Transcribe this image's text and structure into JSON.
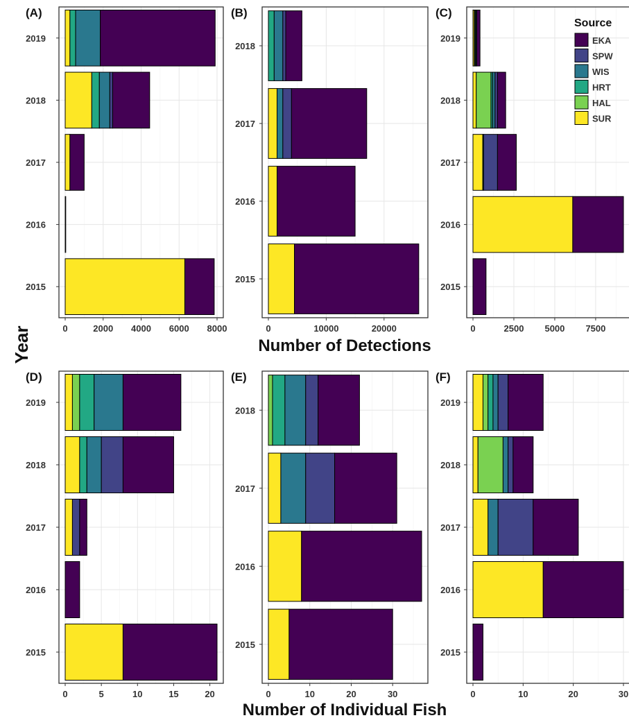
{
  "figure": {
    "y_title": "Year",
    "x_title_top": "Number of Detections",
    "x_title_bottom": "Number of Individual Fish"
  },
  "legend": {
    "title": "Source",
    "placement": "top-right inside panel C",
    "items": [
      {
        "name": "EKA",
        "color": "#440154"
      },
      {
        "name": "SPW",
        "color": "#414487"
      },
      {
        "name": "WIS",
        "color": "#2a788e"
      },
      {
        "name": "HRT",
        "color": "#22a884"
      },
      {
        "name": "HAL",
        "color": "#7ad151"
      },
      {
        "name": "SUR",
        "color": "#fde725"
      }
    ]
  },
  "chart_data": [
    {
      "panel": "(A)",
      "type": "bar",
      "orientation": "horizontal",
      "stacked": true,
      "categories": [
        "2015",
        "2016",
        "2017",
        "2018",
        "2019"
      ],
      "xlim": [
        0,
        8000
      ],
      "xticks": [
        0,
        2000,
        4000,
        6000,
        8000
      ],
      "tick_labels": [
        "0",
        "2000",
        "4000",
        "6000",
        "8000"
      ],
      "grid": true,
      "series": [
        {
          "name": "SUR",
          "values": [
            6300,
            0,
            250,
            1400,
            250
          ]
        },
        {
          "name": "HAL",
          "values": [
            0,
            0,
            0,
            0,
            0
          ]
        },
        {
          "name": "HRT",
          "values": [
            0,
            0,
            0,
            400,
            300
          ]
        },
        {
          "name": "WIS",
          "values": [
            0,
            0,
            0,
            550,
            1300
          ]
        },
        {
          "name": "SPW",
          "values": [
            0,
            0,
            0,
            150,
            0
          ]
        },
        {
          "name": "EKA",
          "values": [
            1550,
            15,
            750,
            1950,
            6050
          ]
        }
      ]
    },
    {
      "panel": "(B)",
      "type": "bar",
      "orientation": "horizontal",
      "stacked": true,
      "categories": [
        "2015",
        "2016",
        "2017",
        "2018"
      ],
      "xlim": [
        0,
        26500
      ],
      "xticks": [
        0,
        10000,
        20000
      ],
      "tick_labels": [
        "0",
        "10000",
        "20000"
      ],
      "grid": true,
      "series": [
        {
          "name": "SUR",
          "values": [
            4500,
            1500,
            1500,
            0
          ]
        },
        {
          "name": "HAL",
          "values": [
            0,
            0,
            0,
            0
          ]
        },
        {
          "name": "HRT",
          "values": [
            0,
            0,
            0,
            1000
          ]
        },
        {
          "name": "WIS",
          "values": [
            0,
            0,
            1000,
            1500
          ]
        },
        {
          "name": "SPW",
          "values": [
            0,
            0,
            1500,
            500
          ]
        },
        {
          "name": "EKA",
          "values": [
            21500,
            13500,
            13000,
            2800
          ]
        }
      ]
    },
    {
      "panel": "(C)",
      "type": "bar",
      "orientation": "horizontal",
      "stacked": true,
      "categories": [
        "2015",
        "2016",
        "2017",
        "2018",
        "2019"
      ],
      "xlim": [
        0,
        9200
      ],
      "xticks": [
        0,
        2500,
        5000,
        7500
      ],
      "tick_labels": [
        "0",
        "2500",
        "5000",
        "7500"
      ],
      "grid": true,
      "series": [
        {
          "name": "SUR",
          "values": [
            0,
            6100,
            600,
            200,
            80
          ]
        },
        {
          "name": "HAL",
          "values": [
            0,
            0,
            0,
            900,
            50
          ]
        },
        {
          "name": "HRT",
          "values": [
            0,
            0,
            50,
            100,
            50
          ]
        },
        {
          "name": "WIS",
          "values": [
            0,
            0,
            0,
            150,
            50
          ]
        },
        {
          "name": "SPW",
          "values": [
            0,
            0,
            850,
            150,
            0
          ]
        },
        {
          "name": "EKA",
          "values": [
            800,
            3100,
            1150,
            500,
            200
          ]
        }
      ]
    },
    {
      "panel": "(D)",
      "type": "bar",
      "orientation": "horizontal",
      "stacked": true,
      "categories": [
        "2015",
        "2016",
        "2017",
        "2018",
        "2019"
      ],
      "xlim": [
        0,
        21
      ],
      "xticks": [
        0,
        5,
        10,
        15,
        20
      ],
      "tick_labels": [
        "0",
        "5",
        "10",
        "15",
        "20"
      ],
      "grid": true,
      "series": [
        {
          "name": "SUR",
          "values": [
            8,
            0,
            1,
            2,
            1
          ]
        },
        {
          "name": "HAL",
          "values": [
            0,
            0,
            0,
            0,
            1
          ]
        },
        {
          "name": "HRT",
          "values": [
            0,
            0,
            0,
            1,
            2
          ]
        },
        {
          "name": "WIS",
          "values": [
            0,
            0,
            0,
            2,
            4
          ]
        },
        {
          "name": "SPW",
          "values": [
            0,
            0,
            1,
            3,
            0
          ]
        },
        {
          "name": "EKA",
          "values": [
            13,
            2,
            1,
            7,
            8
          ]
        }
      ]
    },
    {
      "panel": "(E)",
      "type": "bar",
      "orientation": "horizontal",
      "stacked": true,
      "categories": [
        "2015",
        "2016",
        "2017",
        "2018"
      ],
      "xlim": [
        0,
        37
      ],
      "xticks": [
        0,
        10,
        20,
        30
      ],
      "tick_labels": [
        "0",
        "10",
        "20",
        "30"
      ],
      "grid": true,
      "series": [
        {
          "name": "SUR",
          "values": [
            5,
            8,
            3,
            0
          ]
        },
        {
          "name": "HAL",
          "values": [
            0,
            0,
            0,
            1
          ]
        },
        {
          "name": "HRT",
          "values": [
            0,
            0,
            0,
            3
          ]
        },
        {
          "name": "WIS",
          "values": [
            0,
            0,
            6,
            5
          ]
        },
        {
          "name": "SPW",
          "values": [
            0,
            0,
            7,
            3
          ]
        },
        {
          "name": "EKA",
          "values": [
            25,
            29,
            15,
            10
          ]
        }
      ]
    },
    {
      "panel": "(F)",
      "type": "bar",
      "orientation": "horizontal",
      "stacked": true,
      "categories": [
        "2015",
        "2016",
        "2017",
        "2018",
        "2019"
      ],
      "xlim": [
        0,
        30
      ],
      "xticks": [
        0,
        10,
        20,
        30
      ],
      "tick_labels": [
        "0",
        "10",
        "20",
        "30"
      ],
      "grid": true,
      "series": [
        {
          "name": "SUR",
          "values": [
            0,
            14,
            3,
            1,
            2
          ]
        },
        {
          "name": "HAL",
          "values": [
            0,
            0,
            0,
            5,
            1
          ]
        },
        {
          "name": "HRT",
          "values": [
            0,
            0,
            0,
            0,
            1
          ]
        },
        {
          "name": "WIS",
          "values": [
            0,
            0,
            2,
            1,
            1
          ]
        },
        {
          "name": "SPW",
          "values": [
            0,
            0,
            7,
            1,
            2
          ]
        },
        {
          "name": "EKA",
          "values": [
            2,
            16,
            9,
            4,
            7
          ]
        }
      ]
    }
  ]
}
